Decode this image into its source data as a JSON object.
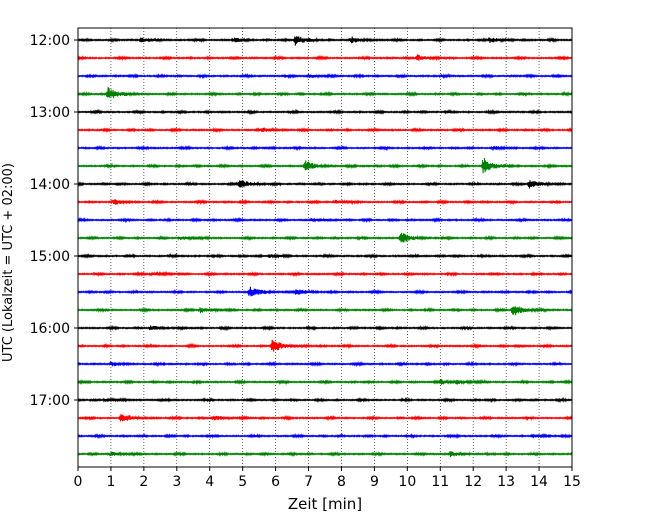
{
  "chart_data": {
    "type": "line",
    "title": "",
    "xlabel": "Zeit  [min]",
    "ylabel": "UTC (Lokalzeit = UTC + 02:00)",
    "xlim": [
      0,
      15
    ],
    "x_ticks": [
      "0",
      "1",
      "2",
      "3",
      "4",
      "5",
      "6",
      "7",
      "8",
      "9",
      "10",
      "11",
      "12",
      "13",
      "14",
      "15"
    ],
    "y_tick_labels": [
      "12:00",
      "13:00",
      "14:00",
      "15:00",
      "16:00",
      "17:00"
    ],
    "row_interval_minutes": 15,
    "grid": "vertical dotted at each minute",
    "series_colors": [
      "#000000",
      "#ff0000",
      "#0000ff",
      "#008000"
    ],
    "traces": [
      {
        "start": "12:00",
        "color": "#000000",
        "events": [
          {
            "t": 6.6,
            "amp": 0.85
          },
          {
            "t": 1.9,
            "amp": 0.4
          },
          {
            "t": 4.7,
            "amp": 0.35
          },
          {
            "t": 8.3,
            "amp": 0.4
          },
          {
            "t": 12.5,
            "amp": 0.45
          }
        ]
      },
      {
        "start": "12:15",
        "color": "#ff0000",
        "events": [
          {
            "t": 10.3,
            "amp": 0.5
          }
        ]
      },
      {
        "start": "12:30",
        "color": "#0000ff",
        "events": [
          {
            "t": 7.0,
            "amp": 0.3
          }
        ]
      },
      {
        "start": "12:45",
        "color": "#008000",
        "events": [
          {
            "t": 0.9,
            "amp": 1.2
          }
        ]
      },
      {
        "start": "13:00",
        "color": "#000000",
        "events": [
          {
            "t": 15.0,
            "amp": 0.3
          }
        ]
      },
      {
        "start": "13:15",
        "color": "#ff0000",
        "events": [
          {
            "t": 5.6,
            "amp": 0.3
          }
        ]
      },
      {
        "start": "13:30",
        "color": "#0000ff",
        "events": [
          {
            "t": 12.6,
            "amp": 0.25
          }
        ]
      },
      {
        "start": "13:45",
        "color": "#008000",
        "events": [
          {
            "t": 6.9,
            "amp": 0.8
          },
          {
            "t": 12.3,
            "amp": 1.5
          }
        ]
      },
      {
        "start": "14:00",
        "color": "#000000",
        "events": [
          {
            "t": 4.9,
            "amp": 0.85
          },
          {
            "t": 13.7,
            "amp": 0.75
          }
        ]
      },
      {
        "start": "14:15",
        "color": "#ff0000",
        "events": [
          {
            "t": 1.1,
            "amp": 0.35
          },
          {
            "t": 7.8,
            "amp": 0.3
          }
        ]
      },
      {
        "start": "14:30",
        "color": "#0000ff",
        "events": [
          {
            "t": 7.1,
            "amp": 0.25
          }
        ]
      },
      {
        "start": "14:45",
        "color": "#008000",
        "events": [
          {
            "t": 3.1,
            "amp": 0.3
          },
          {
            "t": 9.8,
            "amp": 1.0
          }
        ]
      },
      {
        "start": "15:00",
        "color": "#000000",
        "events": [
          {
            "t": 5.8,
            "amp": 0.25
          }
        ]
      },
      {
        "start": "15:15",
        "color": "#ff0000",
        "events": [
          {
            "t": 2.2,
            "amp": 0.25
          }
        ]
      },
      {
        "start": "15:30",
        "color": "#0000ff",
        "events": [
          {
            "t": 5.2,
            "amp": 0.9
          },
          {
            "t": 6.6,
            "amp": 0.55
          }
        ]
      },
      {
        "start": "15:45",
        "color": "#008000",
        "events": [
          {
            "t": 3.7,
            "amp": 0.5
          },
          {
            "t": 13.2,
            "amp": 1.1
          }
        ]
      },
      {
        "start": "16:00",
        "color": "#000000",
        "events": [
          {
            "t": 2.2,
            "amp": 0.3
          }
        ]
      },
      {
        "start": "16:15",
        "color": "#ff0000",
        "events": [
          {
            "t": 5.9,
            "amp": 1.1
          }
        ]
      },
      {
        "start": "16:30",
        "color": "#0000ff",
        "events": [
          {
            "t": 1.0,
            "amp": 0.25
          }
        ]
      },
      {
        "start": "16:45",
        "color": "#008000",
        "events": [
          {
            "t": 11.0,
            "amp": 0.35
          },
          {
            "t": 11.5,
            "amp": 0.3
          }
        ]
      },
      {
        "start": "17:00",
        "color": "#000000",
        "events": [
          {
            "t": 0.8,
            "amp": 0.25
          }
        ]
      },
      {
        "start": "17:15",
        "color": "#ff0000",
        "events": [
          {
            "t": 1.3,
            "amp": 0.75
          },
          {
            "t": 4.1,
            "amp": 0.35
          }
        ]
      },
      {
        "start": "17:30",
        "color": "#0000ff",
        "events": [
          {
            "t": 13.8,
            "amp": 0.3
          }
        ]
      },
      {
        "start": "17:45",
        "color": "#008000",
        "events": [
          {
            "t": 1.0,
            "amp": 0.3
          },
          {
            "t": 11.3,
            "amp": 0.45
          }
        ]
      }
    ]
  }
}
